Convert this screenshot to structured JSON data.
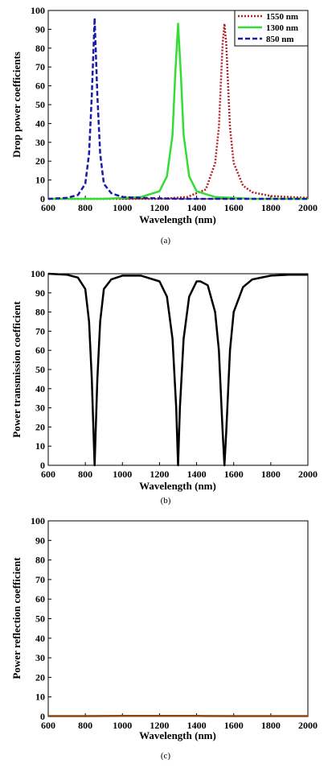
{
  "chart_data": [
    {
      "type": "line",
      "id": "a",
      "xlabel": "Wavelength (nm)",
      "ylabel": "Drop power coefficients",
      "caption": "(a)",
      "xlim": [
        600,
        2000
      ],
      "ylim": [
        0,
        100
      ],
      "xticks": [
        600,
        800,
        1000,
        1200,
        1400,
        1600,
        1800,
        2000
      ],
      "yticks": [
        0,
        10,
        20,
        30,
        40,
        50,
        60,
        70,
        80,
        90,
        100
      ],
      "grid": false,
      "legend_position": "top-right",
      "series": [
        {
          "name": "1550 nm",
          "color": "#b22222",
          "style": "dotted",
          "x": [
            600,
            900,
            1200,
            1350,
            1450,
            1500,
            1520,
            1540,
            1550,
            1560,
            1580,
            1600,
            1650,
            1700,
            1800,
            1900,
            2000
          ],
          "y": [
            0,
            0,
            0,
            1,
            5,
            19,
            38,
            82,
            93,
            82,
            38,
            19,
            7,
            3.5,
            1.5,
            1,
            0.5
          ]
        },
        {
          "name": "1300 nm",
          "color": "#33dd33",
          "style": "solid",
          "x": [
            600,
            900,
            1100,
            1200,
            1240,
            1270,
            1285,
            1300,
            1315,
            1330,
            1360,
            1400,
            1500,
            1700,
            2000
          ],
          "y": [
            0,
            0,
            1,
            4,
            12,
            34,
            66,
            93,
            66,
            34,
            12,
            4,
            1,
            0,
            0
          ]
        },
        {
          "name": "850 nm",
          "color": "#1a1aa8",
          "style": "dashed",
          "x": [
            600,
            700,
            760,
            800,
            820,
            835,
            850,
            865,
            880,
            900,
            940,
            1000,
            1100,
            1300,
            1600,
            2000
          ],
          "y": [
            0,
            0.5,
            2,
            8,
            24,
            55,
            96,
            55,
            24,
            8,
            3,
            1,
            0.5,
            0,
            0,
            0
          ]
        }
      ]
    },
    {
      "type": "line",
      "id": "b",
      "xlabel": "Wavelength (nm)",
      "ylabel": "Power transmission coefficient",
      "caption": "(b)",
      "xlim": [
        600,
        2000
      ],
      "ylim": [
        0,
        100
      ],
      "xticks": [
        600,
        800,
        1000,
        1200,
        1400,
        1600,
        1800,
        2000
      ],
      "yticks": [
        0,
        10,
        20,
        30,
        40,
        50,
        60,
        70,
        80,
        90,
        100
      ],
      "grid": false,
      "series": [
        {
          "color": "#000000",
          "style": "solid",
          "x": [
            600,
            700,
            760,
            800,
            820,
            835,
            845,
            850,
            855,
            865,
            880,
            900,
            940,
            1000,
            1100,
            1200,
            1240,
            1270,
            1290,
            1300,
            1310,
            1330,
            1360,
            1400,
            1420,
            1460,
            1500,
            1520,
            1540,
            1550,
            1560,
            1580,
            1600,
            1650,
            1700,
            1800,
            1900,
            2000
          ],
          "y": [
            100,
            99.5,
            98,
            92,
            75,
            45,
            15,
            0,
            15,
            45,
            75,
            92,
            97,
            99,
            99,
            96,
            88,
            66,
            30,
            0,
            30,
            66,
            88,
            96,
            96,
            94,
            80,
            60,
            18,
            0,
            18,
            60,
            80,
            93,
            97,
            99,
            99.5,
            99.5
          ]
        }
      ]
    },
    {
      "type": "line",
      "id": "c",
      "xlabel": "Wavelength (nm)",
      "ylabel": "Power reflection coefficient",
      "caption": "(c)",
      "xlim": [
        600,
        2000
      ],
      "ylim": [
        0,
        100
      ],
      "xticks": [
        600,
        800,
        1000,
        1200,
        1400,
        1600,
        1800,
        2000
      ],
      "yticks": [
        0,
        10,
        20,
        30,
        40,
        50,
        60,
        70,
        80,
        90,
        100
      ],
      "grid": false,
      "series": [
        {
          "color": "#8b4513",
          "style": "solid",
          "x": [
            600,
            800,
            1000,
            1200,
            1400,
            1600,
            1800,
            2000
          ],
          "y": [
            0.2,
            0.2,
            0.3,
            0.3,
            0.3,
            0.2,
            0.2,
            0.2
          ]
        }
      ]
    }
  ]
}
